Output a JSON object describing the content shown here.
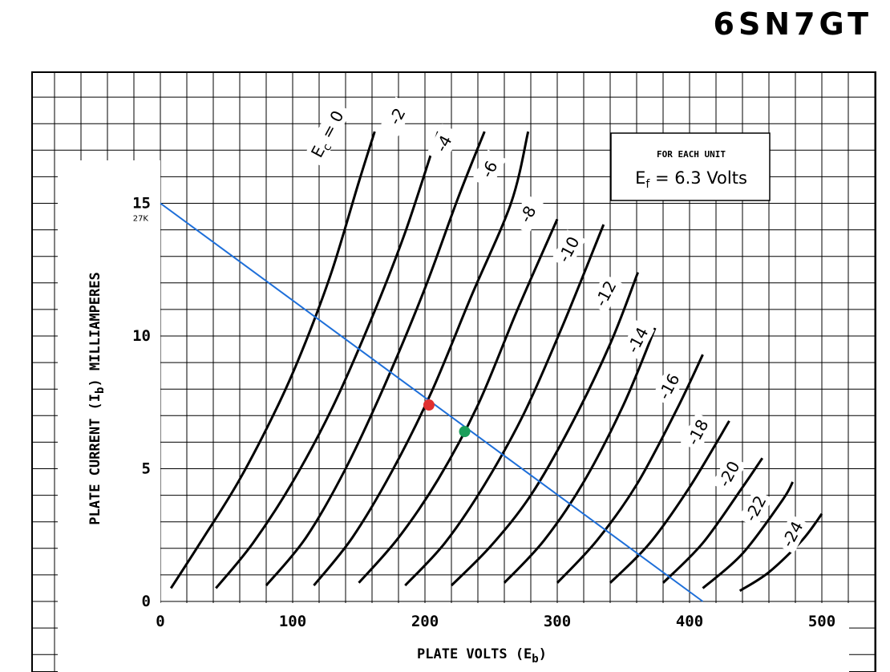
{
  "title": "6SN7GT",
  "chart_data": {
    "type": "line",
    "xlabel": "PLATE VOLTS (E",
    "xlabel_sub": "b",
    "xlabel_end": ")",
    "ylabel": "PLATE CURRENT (I",
    "ylabel_sub": "b",
    "ylabel_end": ") MILLIAMPERES",
    "xlim": [
      0,
      500
    ],
    "ylim": [
      0,
      15
    ],
    "x_ticks": [
      0,
      100,
      200,
      300,
      400,
      500
    ],
    "y_ticks": [
      0,
      5,
      10,
      15
    ],
    "y_tick_labels": [
      "0",
      "5",
      "10",
      "15"
    ],
    "load_line_label": "27K",
    "info_box": {
      "line1": "FOR EACH UNIT",
      "line2": "E",
      "line2_sub": "f",
      "line2_rest": " = 6.3 Volts"
    },
    "load_line": {
      "color": "#1E6FD9",
      "points": [
        [
          0,
          15.0
        ],
        [
          410,
          0
        ]
      ]
    },
    "operating_points": [
      {
        "color": "#E03030",
        "x": 203,
        "y": 7.4
      },
      {
        "color": "#1A9E5A",
        "x": 230,
        "y": 6.4
      }
    ],
    "series": [
      {
        "label": "E",
        "label_sub": "c",
        "label_rest": " = 0",
        "grid_voltage": 0,
        "points": [
          [
            8,
            0.5
          ],
          [
            30,
            2.2
          ],
          [
            60,
            4.6
          ],
          [
            90,
            7.5
          ],
          [
            110,
            9.8
          ],
          [
            130,
            12.5
          ],
          [
            150,
            15.8
          ],
          [
            162,
            17.7
          ]
        ]
      },
      {
        "label": "-2",
        "grid_voltage": -2,
        "points": [
          [
            42,
            0.5
          ],
          [
            70,
            2.2
          ],
          [
            100,
            4.5
          ],
          [
            130,
            7.3
          ],
          [
            160,
            10.7
          ],
          [
            185,
            13.9
          ],
          [
            210,
            17.7
          ]
        ]
      },
      {
        "label": "-4",
        "grid_voltage": -4,
        "points": [
          [
            80,
            0.6
          ],
          [
            110,
            2.4
          ],
          [
            140,
            5.0
          ],
          [
            170,
            8.2
          ],
          [
            200,
            11.8
          ],
          [
            225,
            15.2
          ],
          [
            245,
            17.7
          ]
        ]
      },
      {
        "label": "-6",
        "grid_voltage": -6,
        "points": [
          [
            116,
            0.6
          ],
          [
            145,
            2.4
          ],
          [
            175,
            4.9
          ],
          [
            205,
            7.9
          ],
          [
            235,
            11.5
          ],
          [
            265,
            15.0
          ],
          [
            278,
            17.7
          ]
        ]
      },
      {
        "label": "-8",
        "grid_voltage": -8,
        "points": [
          [
            150,
            0.7
          ],
          [
            180,
            2.4
          ],
          [
            210,
            4.6
          ],
          [
            240,
            7.4
          ],
          [
            270,
            11.0
          ],
          [
            300,
            14.4
          ]
        ]
      },
      {
        "label": "-10",
        "grid_voltage": -10,
        "points": [
          [
            185,
            0.6
          ],
          [
            215,
            2.2
          ],
          [
            245,
            4.4
          ],
          [
            275,
            7.1
          ],
          [
            305,
            10.5
          ],
          [
            335,
            14.2
          ]
        ]
      },
      {
        "label": "-12",
        "grid_voltage": -12,
        "points": [
          [
            220,
            0.6
          ],
          [
            250,
            2.1
          ],
          [
            280,
            4.0
          ],
          [
            310,
            6.6
          ],
          [
            340,
            9.7
          ],
          [
            361,
            12.4
          ]
        ]
      },
      {
        "label": "-14",
        "grid_voltage": -14,
        "points": [
          [
            260,
            0.7
          ],
          [
            290,
            2.3
          ],
          [
            320,
            4.5
          ],
          [
            350,
            7.4
          ],
          [
            374,
            10.3
          ]
        ]
      },
      {
        "label": "-16",
        "grid_voltage": -16,
        "points": [
          [
            300,
            0.7
          ],
          [
            330,
            2.3
          ],
          [
            360,
            4.4
          ],
          [
            390,
            7.2
          ],
          [
            410,
            9.3
          ]
        ]
      },
      {
        "label": "-18",
        "grid_voltage": -18,
        "points": [
          [
            340,
            0.7
          ],
          [
            370,
            2.2
          ],
          [
            400,
            4.3
          ],
          [
            430,
            6.8
          ]
        ]
      },
      {
        "label": "-20",
        "grid_voltage": -20,
        "points": [
          [
            380,
            0.7
          ],
          [
            410,
            2.2
          ],
          [
            440,
            4.3
          ],
          [
            455,
            5.4
          ]
        ]
      },
      {
        "label": "-22",
        "grid_voltage": -22,
        "points": [
          [
            410,
            0.5
          ],
          [
            440,
            1.8
          ],
          [
            470,
            3.8
          ],
          [
            478,
            4.5
          ]
        ]
      },
      {
        "label": "-24",
        "grid_voltage": -24,
        "points": [
          [
            438,
            0.4
          ],
          [
            460,
            1.1
          ],
          [
            485,
            2.3
          ],
          [
            500,
            3.3
          ]
        ]
      }
    ]
  }
}
